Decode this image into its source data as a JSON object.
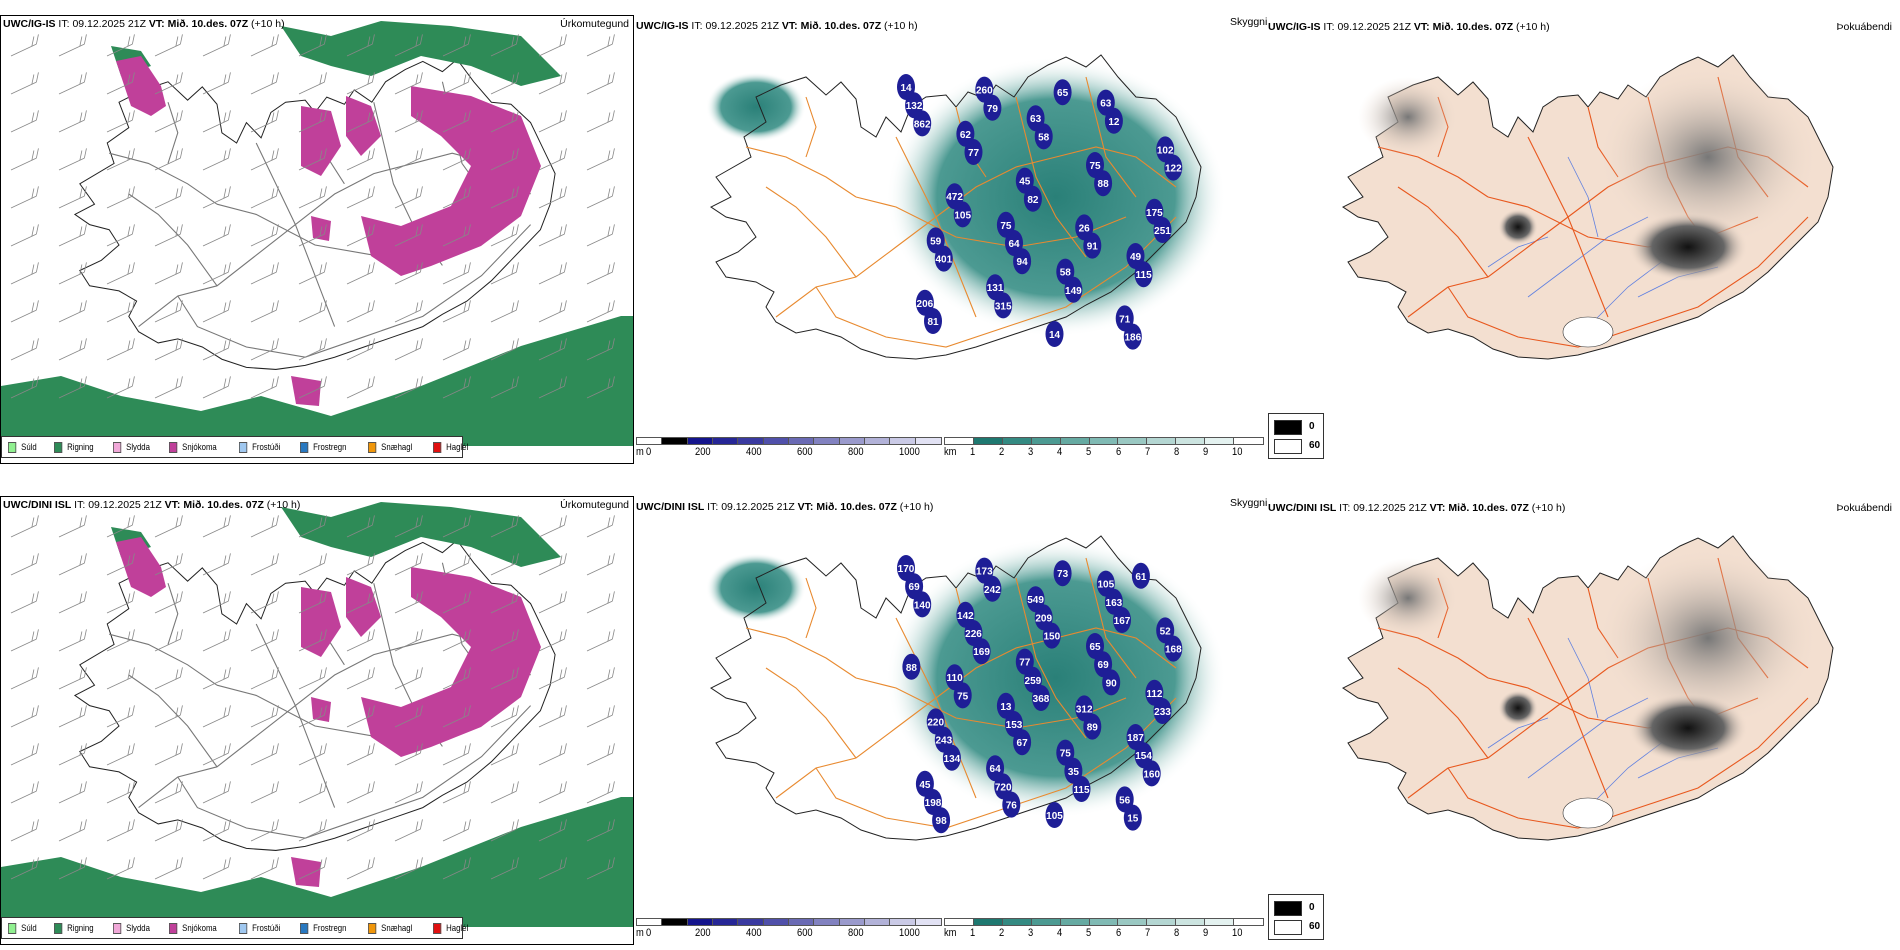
{
  "rows": [
    {
      "model": "UWC/IG-IS",
      "it_label": "IT:",
      "it_value": "09.12.2025 21Z",
      "vt_label": "VT:",
      "vt_value": "Mið. 10.des. 07Z",
      "lead": "(+10 h)",
      "map_labels": [
        "14",
        "75",
        "63",
        "59",
        "63",
        "49",
        "62",
        "58",
        "102",
        "131",
        "75",
        "206",
        "45",
        "71",
        "472",
        "14",
        "175",
        "260",
        "26",
        "132",
        "64",
        "12",
        "401",
        "58",
        "115",
        "77",
        "149",
        "122",
        "315",
        "88",
        "81",
        "82",
        "186",
        "105",
        "65",
        "251",
        "79",
        "91",
        "862",
        "94"
      ]
    },
    {
      "model": "UWC/DINI ISL",
      "it_label": "IT:",
      "it_value": "09.12.2025 21Z",
      "vt_label": "VT:",
      "vt_value": "Mið. 10.des. 07Z",
      "lead": "(+10 h)",
      "map_labels": [
        "170",
        "13",
        "105",
        "220",
        "549",
        "187",
        "142",
        "75",
        "52",
        "64",
        "65",
        "45",
        "77",
        "56",
        "110",
        "105",
        "112",
        "173",
        "312",
        "69",
        "153",
        "163",
        "243",
        "209",
        "154",
        "226",
        "35",
        "168",
        "720",
        "69",
        "198",
        "259",
        "15",
        "75",
        "73",
        "233",
        "242",
        "89",
        "140",
        "67",
        "167",
        "134",
        "150",
        "160",
        "169",
        "115",
        "88",
        "76",
        "90",
        "98",
        "368",
        "61"
      ]
    }
  ],
  "panel_titles": {
    "precip": "Úrkomutegund",
    "cloud": "Skyggni",
    "fog": "Þokuábendi"
  },
  "precip_legend": [
    {
      "label": "Súld",
      "color": "#90f090"
    },
    {
      "label": "Rigning",
      "color": "#2e8b57"
    },
    {
      "label": "Slydda",
      "color": "#f0a8d8"
    },
    {
      "label": "Snjókoma",
      "color": "#c0409a"
    },
    {
      "label": "Frostúði",
      "color": "#a0c8f0"
    },
    {
      "label": "Frostregn",
      "color": "#2878c0"
    },
    {
      "label": "Snæhagl",
      "color": "#f0960a"
    },
    {
      "label": "Haglél",
      "color": "#e01010"
    }
  ],
  "ceiling_colorbar": {
    "unit": "m",
    "ticks": [
      "0",
      "200",
      "400",
      "600",
      "800",
      "1000"
    ],
    "colors": [
      "#ffffff",
      "#000000",
      "#14148c",
      "#262696",
      "#3a3aa0",
      "#5050aa",
      "#6a6ab4",
      "#8282c0",
      "#9a9acc",
      "#b2b2d8",
      "#cacae6",
      "#e2e2f4"
    ]
  },
  "visibility_colorbar": {
    "unit": "km",
    "ticks": [
      "1",
      "2",
      "3",
      "4",
      "5",
      "6",
      "7",
      "8",
      "9",
      "10"
    ],
    "colors": [
      "#ffffff",
      "#1e7870",
      "#348a82",
      "#4c9a92",
      "#66aaa2",
      "#80bab4",
      "#9ac8c2",
      "#b4d6d2",
      "#cce4e0",
      "#e4f2f0",
      "#ffffff"
    ]
  },
  "fog_legend": [
    {
      "label": "0",
      "color": "#000000"
    },
    {
      "label": "60",
      "color": "#ffffff"
    }
  ],
  "colors": {
    "land_fog": "#f3dfd0",
    "road": "#e8581e",
    "road_mid": "#e88a30",
    "river": "#6080e0",
    "coast": "#222222",
    "rain": "#2e8b57",
    "snow": "#c0409a"
  }
}
